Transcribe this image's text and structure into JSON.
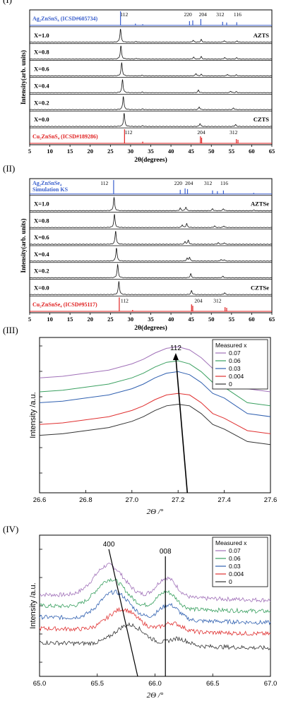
{
  "chart_data": [
    {
      "type": "line",
      "panel": "(I)",
      "xlabel": "2θ(degrees)",
      "ylabel": "Intensity(arb. units)",
      "xlim": [
        5,
        65
      ],
      "xticks": [
        5,
        10,
        15,
        20,
        25,
        30,
        35,
        40,
        45,
        50,
        55,
        60,
        65
      ],
      "top_ref": {
        "label": "Ag₂ZnSnS₄ (ICSD#605734)",
        "color": "#3a5fcd",
        "peaks": [
          [
            27.5,
            1.0
          ],
          [
            31.2,
            0.12
          ],
          [
            33.0,
            0.08
          ],
          [
            44.6,
            0.3
          ],
          [
            45.4,
            0.35
          ],
          [
            47.4,
            0.45
          ],
          [
            52.8,
            0.25
          ],
          [
            53.8,
            0.2
          ],
          [
            56.3,
            0.22
          ]
        ],
        "labels": [
          {
            "x": 28.4,
            "t": "112"
          },
          {
            "x": 44.2,
            "t": "220"
          },
          {
            "x": 47.9,
            "t": "204"
          },
          {
            "x": 52.2,
            "t": "312"
          },
          {
            "x": 56.5,
            "t": "116"
          }
        ]
      },
      "bottom_ref": {
        "label": "Cu₂ZnSnS₄ (ICSD#189286)",
        "color": "#e02020",
        "peaks": [
          [
            28.5,
            1.0
          ],
          [
            33.0,
            0.12
          ],
          [
            47.3,
            0.5
          ],
          [
            47.6,
            0.4
          ],
          [
            56.2,
            0.3
          ],
          [
            56.6,
            0.25
          ]
        ],
        "labels": [
          {
            "x": 29.5,
            "t": "112"
          },
          {
            "x": 47.5,
            "t": "204"
          },
          {
            "x": 55.5,
            "t": "312"
          }
        ]
      },
      "series": [
        {
          "name": "X=1.0",
          "peaks": [
            [
              27.5,
              1.0
            ],
            [
              31.4,
              0.05
            ],
            [
              45.5,
              0.15
            ],
            [
              47.5,
              0.2
            ],
            [
              53.2,
              0.12
            ],
            [
              56.4,
              0.1
            ]
          ]
        },
        {
          "name": "X=0.8",
          "peaks": [
            [
              27.6,
              1.0
            ],
            [
              31.5,
              0.05
            ],
            [
              45.6,
              0.15
            ],
            [
              47.5,
              0.18
            ],
            [
              53.3,
              0.12
            ],
            [
              56.3,
              0.1
            ]
          ]
        },
        {
          "name": "X=0.6",
          "peaks": [
            [
              27.8,
              1.0
            ],
            [
              32.8,
              0.05
            ],
            [
              46.2,
              0.18
            ],
            [
              47.5,
              0.12
            ],
            [
              54.0,
              0.12
            ],
            [
              56.2,
              0.08
            ]
          ]
        },
        {
          "name": "X=0.4",
          "peaks": [
            [
              28.0,
              1.0
            ],
            [
              32.9,
              0.05
            ],
            [
              46.8,
              0.2
            ],
            [
              54.8,
              0.12
            ],
            [
              56.2,
              0.08
            ]
          ]
        },
        {
          "name": "X=0.2",
          "peaks": [
            [
              28.2,
              1.0
            ],
            [
              33.0,
              0.05
            ],
            [
              47.0,
              0.2
            ],
            [
              55.5,
              0.12
            ]
          ]
        },
        {
          "name": "X=0.0",
          "peaks": [
            [
              28.4,
              1.0
            ],
            [
              33.0,
              0.05
            ],
            [
              47.2,
              0.22
            ],
            [
              56.0,
              0.14
            ]
          ]
        }
      ],
      "side_labels": [
        {
          "row": 0,
          "t": "AZTS"
        },
        {
          "row": 5,
          "t": "CZTS"
        }
      ]
    },
    {
      "type": "line",
      "panel": "(II)",
      "xlabel": "2θ(degrees)",
      "ylabel": "Intensity(arb. units)",
      "xlim": [
        5,
        65
      ],
      "xticks": [
        5,
        10,
        15,
        20,
        25,
        30,
        35,
        40,
        45,
        50,
        55,
        60,
        65
      ],
      "top_ref": {
        "label": "Ag₂ZnSnSe₄\nSimulation KS",
        "color": "#3a5fcd",
        "peaks": [
          [
            25.8,
            1.0
          ],
          [
            42.3,
            0.3
          ],
          [
            43.5,
            0.4
          ],
          [
            44.1,
            0.35
          ],
          [
            50.3,
            0.25
          ],
          [
            51.5,
            0.2
          ],
          [
            53.0,
            0.25
          ],
          [
            60.5,
            0.08
          ]
        ],
        "labels": [
          {
            "x": 23.5,
            "t": "112"
          },
          {
            "x": 41.8,
            "t": "220"
          },
          {
            "x": 44.5,
            "t": "204"
          },
          {
            "x": 49.2,
            "t": "312"
          },
          {
            "x": 53.2,
            "t": "116"
          }
        ]
      },
      "bottom_ref": {
        "label": "Cu₂ZnSnSe₄ (ICSD#95117)",
        "color": "#e02020",
        "peaks": [
          [
            27.2,
            1.0
          ],
          [
            30.5,
            0.1
          ],
          [
            45.1,
            0.5
          ],
          [
            45.4,
            0.4
          ],
          [
            53.4,
            0.3
          ],
          [
            53.8,
            0.25
          ]
        ],
        "labels": [
          {
            "x": 28.5,
            "t": "112"
          },
          {
            "x": 46.8,
            "t": "204"
          },
          {
            "x": 51.5,
            "t": "312"
          }
        ]
      },
      "series": [
        {
          "name": "X=1.0",
          "peaks": [
            [
              25.9,
              1.0
            ],
            [
              42.3,
              0.2
            ],
            [
              43.7,
              0.28
            ],
            [
              50.3,
              0.15
            ],
            [
              53.0,
              0.15
            ],
            [
              60.6,
              0.05
            ]
          ]
        },
        {
          "name": "X=0.8",
          "peaks": [
            [
              26.0,
              1.0
            ],
            [
              42.8,
              0.2
            ],
            [
              43.9,
              0.3
            ],
            [
              50.8,
              0.12
            ],
            [
              53.1,
              0.12
            ]
          ]
        },
        {
          "name": "X=0.6",
          "peaks": [
            [
              26.3,
              1.0
            ],
            [
              43.5,
              0.2
            ],
            [
              44.3,
              0.3
            ],
            [
              51.7,
              0.12
            ],
            [
              53.2,
              0.12
            ]
          ]
        },
        {
          "name": "X=0.4",
          "peaks": [
            [
              26.5,
              1.0
            ],
            [
              44.0,
              0.2
            ],
            [
              44.6,
              0.28
            ],
            [
              52.4,
              0.12
            ],
            [
              53.2,
              0.1
            ]
          ]
        },
        {
          "name": "X=0.2",
          "peaks": [
            [
              26.8,
              1.0
            ],
            [
              44.9,
              0.3
            ],
            [
              52.9,
              0.12
            ]
          ]
        },
        {
          "name": "X=0.0",
          "peaks": [
            [
              27.1,
              1.0
            ],
            [
              45.1,
              0.3
            ],
            [
              53.3,
              0.14
            ]
          ]
        }
      ],
      "side_labels": [
        {
          "row": 0,
          "t": "AZTSe"
        },
        {
          "row": 5,
          "t": "CZTSe"
        }
      ]
    },
    {
      "type": "line",
      "panel": "(III)",
      "xlabel": "2Θ /°",
      "ylabel": "Intensity /a.u.",
      "xlim": [
        26.6,
        27.6
      ],
      "xticks": [
        26.6,
        26.8,
        27.0,
        27.2,
        27.4,
        27.6
      ],
      "legend_title": "Measured x",
      "legend_position": "top-right",
      "annotation": {
        "text": "112",
        "arrow_from": [
          27.24,
          0.0
        ],
        "arrow_to": [
          27.19,
          0.9
        ]
      },
      "series": [
        {
          "name": "0.07",
          "color": "#a070b8",
          "x": [
            26.6,
            26.7,
            26.8,
            26.9,
            27.0,
            27.05,
            27.1,
            27.15,
            27.2,
            27.25,
            27.3,
            27.35,
            27.4,
            27.45,
            27.5,
            27.6
          ],
          "y": [
            0.74,
            0.75,
            0.77,
            0.79,
            0.83,
            0.86,
            0.9,
            0.93,
            0.94,
            0.92,
            0.87,
            0.8,
            0.77,
            0.72,
            0.67,
            0.65
          ]
        },
        {
          "name": "0.06",
          "color": "#3aa060",
          "x": [
            26.6,
            26.7,
            26.8,
            26.9,
            27.0,
            27.05,
            27.1,
            27.15,
            27.2,
            27.25,
            27.3,
            27.35,
            27.4,
            27.45,
            27.5,
            27.6
          ],
          "y": [
            0.65,
            0.66,
            0.68,
            0.7,
            0.74,
            0.77,
            0.81,
            0.84,
            0.85,
            0.83,
            0.78,
            0.71,
            0.68,
            0.63,
            0.58,
            0.56
          ]
        },
        {
          "name": "0.03",
          "color": "#3060b0",
          "x": [
            26.6,
            26.7,
            26.8,
            26.9,
            27.0,
            27.05,
            27.1,
            27.15,
            27.2,
            27.25,
            27.3,
            27.35,
            27.4,
            27.45,
            27.5,
            27.6
          ],
          "y": [
            0.58,
            0.59,
            0.61,
            0.63,
            0.67,
            0.7,
            0.74,
            0.77,
            0.78,
            0.76,
            0.71,
            0.64,
            0.61,
            0.56,
            0.51,
            0.49
          ]
        },
        {
          "name": "0.004",
          "color": "#e03030",
          "x": [
            26.6,
            26.7,
            26.8,
            26.9,
            27.0,
            27.05,
            27.1,
            27.15,
            27.2,
            27.25,
            27.3,
            27.35,
            27.4,
            27.45,
            27.5,
            27.6
          ],
          "y": [
            0.44,
            0.45,
            0.47,
            0.49,
            0.53,
            0.56,
            0.6,
            0.63,
            0.64,
            0.63,
            0.58,
            0.51,
            0.48,
            0.44,
            0.4,
            0.38
          ]
        },
        {
          "name": "0",
          "color": "#333333",
          "x": [
            26.6,
            26.7,
            26.8,
            26.9,
            27.0,
            27.05,
            27.1,
            27.15,
            27.2,
            27.25,
            27.3,
            27.35,
            27.4,
            27.45,
            27.5,
            27.6
          ],
          "y": [
            0.37,
            0.38,
            0.4,
            0.42,
            0.46,
            0.49,
            0.53,
            0.56,
            0.57,
            0.56,
            0.51,
            0.44,
            0.41,
            0.37,
            0.33,
            0.31
          ]
        }
      ]
    },
    {
      "type": "line",
      "panel": "(IV)",
      "xlabel": "2Θ /°",
      "ylabel": "Intensity /a.u.",
      "xlim": [
        65.0,
        67.0
      ],
      "xticks": [
        65.0,
        65.5,
        66.0,
        66.5,
        67.0
      ],
      "legend_title": "Measured x",
      "legend_position": "top-right",
      "annotations": [
        {
          "text": "400",
          "line_from": [
            65.85,
            0.0
          ],
          "line_to": [
            65.6,
            0.9
          ]
        },
        {
          "text": "008",
          "line_from": [
            66.09,
            0.0
          ],
          "line_to": [
            66.09,
            0.85
          ]
        }
      ],
      "series": [
        {
          "name": "0.07",
          "color": "#a070b8",
          "base": 0.58,
          "p1": [
            65.6,
            0.22
          ],
          "p2": [
            66.1,
            0.14
          ]
        },
        {
          "name": "0.06",
          "color": "#3aa060",
          "base": 0.5,
          "p1": [
            65.62,
            0.2
          ],
          "p2": [
            66.1,
            0.12
          ]
        },
        {
          "name": "0.03",
          "color": "#3060b0",
          "base": 0.42,
          "p1": [
            65.65,
            0.19
          ],
          "p2": [
            66.12,
            0.11
          ]
        },
        {
          "name": "0.004",
          "color": "#e03030",
          "base": 0.34,
          "p1": [
            65.72,
            0.15
          ],
          "p2": [
            66.15,
            0.06
          ]
        },
        {
          "name": "0",
          "color": "#333333",
          "base": 0.24,
          "p1": [
            65.78,
            0.14
          ],
          "p2": [
            66.2,
            0.05
          ]
        }
      ]
    }
  ]
}
